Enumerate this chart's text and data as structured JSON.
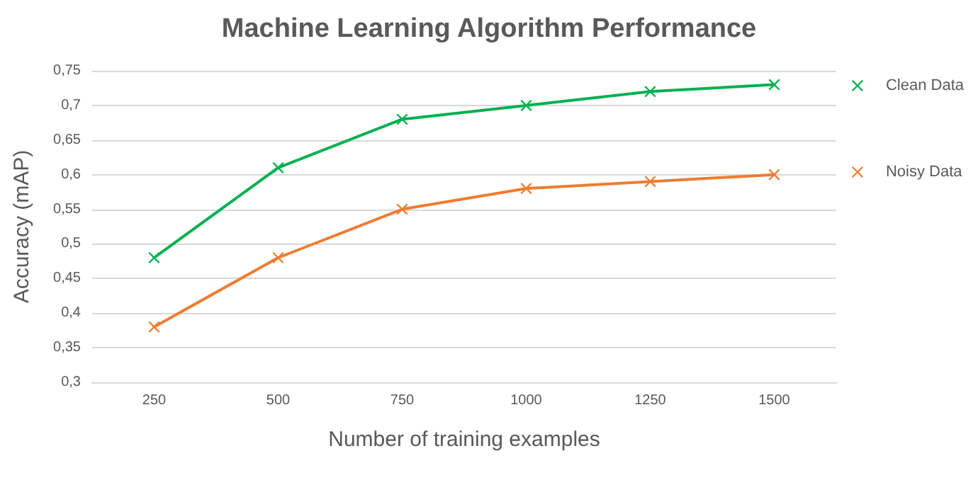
{
  "chart_data": {
    "type": "line",
    "title": "Machine Learning Algorithm Performance",
    "xlabel": "Number of training examples",
    "ylabel": "Accuracy (mAP)",
    "categories": [
      "250",
      "500",
      "750",
      "1000",
      "1250",
      "1500"
    ],
    "series": [
      {
        "name": "Clean Data",
        "color": "#00b050",
        "values": [
          0.48,
          0.61,
          0.68,
          0.7,
          0.72,
          0.73
        ]
      },
      {
        "name": "Noisy Data",
        "color": "#ed7d31",
        "values": [
          0.38,
          0.48,
          0.55,
          0.58,
          0.59,
          0.6
        ]
      }
    ],
    "ylim": [
      0.3,
      0.75
    ],
    "yticks": [
      {
        "value": 0.3,
        "label": "0,3"
      },
      {
        "value": 0.35,
        "label": "0,35"
      },
      {
        "value": 0.4,
        "label": "0,4"
      },
      {
        "value": 0.45,
        "label": "0,45"
      },
      {
        "value": 0.5,
        "label": "0,5"
      },
      {
        "value": 0.55,
        "label": "0,55"
      },
      {
        "value": 0.6,
        "label": "0,6"
      },
      {
        "value": 0.65,
        "label": "0,65"
      },
      {
        "value": 0.7,
        "label": "0,7"
      },
      {
        "value": 0.75,
        "label": "0,75"
      }
    ],
    "grid": "y",
    "legend": "right",
    "marker": "cross",
    "line_style": "solid"
  }
}
